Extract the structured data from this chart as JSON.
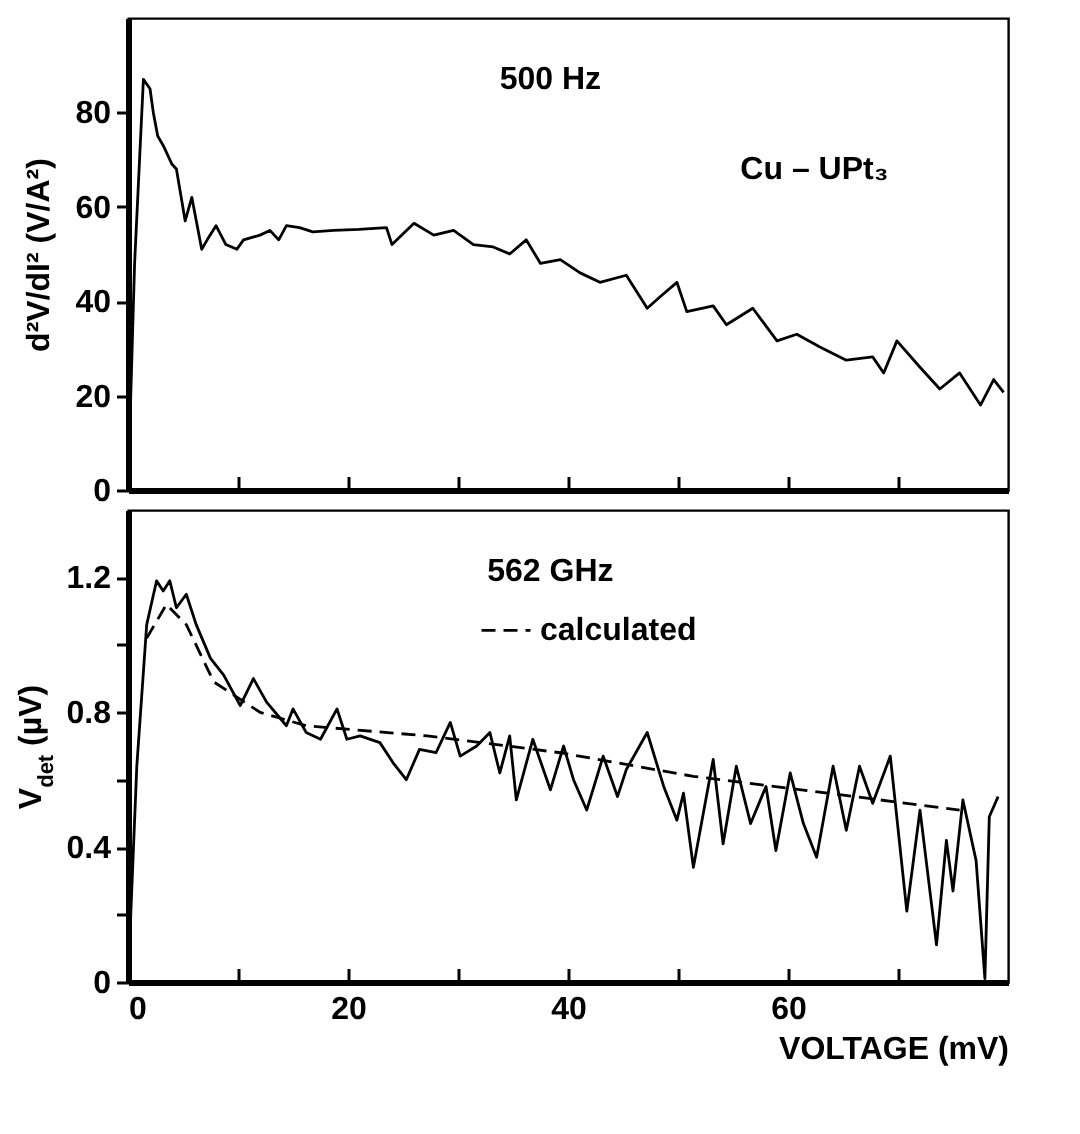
{
  "chart_data": [
    {
      "type": "line",
      "ylabel": "d²V/dI²  (V/A²)",
      "annotations": [
        "500 Hz",
        "Cu – UPt₃"
      ],
      "xlim": [
        0,
        80
      ],
      "xticks": [
        {
          "value": 0,
          "label": null
        },
        {
          "value": 10,
          "label": null
        },
        {
          "value": 20,
          "label": null
        },
        {
          "value": 30,
          "label": null
        },
        {
          "value": 40,
          "label": null
        },
        {
          "value": 50,
          "label": null
        },
        {
          "value": 60,
          "label": null
        },
        {
          "value": 70,
          "label": null
        }
      ],
      "ylim": [
        0,
        100
      ],
      "yticks": [
        0,
        20,
        40,
        60,
        80
      ],
      "tick_labels": "y",
      "grid": false,
      "series": [
        {
          "color": "#000000",
          "x": [
            0,
            0.6,
            1.4,
            2.0,
            2.3,
            2.7,
            3.2,
            4.0,
            4.4,
            5.2,
            5.8,
            6.7,
            7.2,
            8.0,
            8.9,
            9.9,
            10.5,
            12,
            12.9,
            13.7,
            14.4,
            15.6,
            16.8,
            18.7,
            21,
            23.5,
            24,
            26,
            27.8,
            29.6,
            31.4,
            33.2,
            34.7,
            36.2,
            37.5,
            39.3,
            41.1,
            42.9,
            45.3,
            47.2,
            48.4,
            49.9,
            50.8,
            53.2,
            54.4,
            56.8,
            59,
            60.8,
            62.9,
            65.3,
            67.7,
            68.7,
            69.9,
            72,
            73.8,
            75.6,
            77.5,
            78.7,
            79.6
          ],
          "values": [
            0,
            48,
            87,
            85,
            80,
            75,
            73,
            69,
            68,
            57,
            62,
            51,
            53,
            56,
            52,
            51,
            53,
            54,
            55,
            53,
            56,
            55.6,
            54.7,
            55,
            55.2,
            55.6,
            52,
            56.5,
            54,
            55,
            52,
            51.5,
            50,
            53,
            48,
            48.8,
            46,
            44,
            45.5,
            38.5,
            41,
            44,
            37.8,
            39,
            35,
            38.5,
            31.6,
            33,
            30.3,
            27.5,
            28.2,
            24.8,
            31.6,
            26,
            21.4,
            24.8,
            18,
            23.4,
            20.7
          ]
        }
      ]
    },
    {
      "type": "line",
      "xlabel": "VOLTAGE  (mV)",
      "ylabel": "V$_{det}$  (µV)",
      "annotations": [
        "562 GHz"
      ],
      "xlim": [
        0,
        80
      ],
      "xticks": [
        0,
        {
          "value": 10,
          "label": null
        },
        20,
        {
          "value": 30,
          "label": null
        },
        40,
        {
          "value": 50,
          "label": null
        },
        60,
        {
          "value": 70,
          "label": null
        }
      ],
      "ylim": [
        0,
        1.4
      ],
      "yticks": [
        0,
        {
          "value": 0.2,
          "label": null
        },
        0.4,
        {
          "value": 0.6,
          "label": null
        },
        0.8,
        {
          "value": 1.0,
          "label": null
        },
        1.2
      ],
      "grid": false,
      "legend": "top",
      "series": [
        {
          "color": "#000000",
          "line_style": "solid",
          "x": [
            0,
            0.8,
            1.7,
            2.6,
            3.2,
            3.8,
            4.4,
            5.3,
            6.2,
            7.5,
            8.7,
            10.2,
            11.4,
            12.6,
            14.4,
            15,
            16.2,
            17.5,
            19,
            19.9,
            21.1,
            22.9,
            24.1,
            25.3,
            26.5,
            28,
            29.3,
            30.2,
            31.7,
            32.9,
            33.8,
            34.7,
            35.3,
            36.8,
            38.4,
            39.6,
            40.5,
            41.7,
            43.2,
            44.5,
            45.3,
            47.2,
            48.7,
            49.9,
            50.5,
            51.4,
            53.2,
            54.1,
            55.3,
            56.6,
            58,
            58.9,
            60.2,
            61.4,
            62.6,
            64.1,
            65.3,
            66.5,
            67.7,
            69.3,
            70.8,
            72,
            73.5,
            74.4,
            75,
            75.9,
            77.1,
            77.9,
            78.3,
            79.1
          ],
          "values": [
            0,
            0.64,
            1.06,
            1.19,
            1.16,
            1.19,
            1.11,
            1.15,
            1.06,
            0.96,
            0.91,
            0.82,
            0.9,
            0.83,
            0.76,
            0.81,
            0.74,
            0.72,
            0.81,
            0.72,
            0.73,
            0.71,
            0.65,
            0.6,
            0.69,
            0.68,
            0.77,
            0.67,
            0.7,
            0.74,
            0.62,
            0.73,
            0.54,
            0.72,
            0.57,
            0.7,
            0.6,
            0.51,
            0.67,
            0.55,
            0.63,
            0.74,
            0.58,
            0.48,
            0.56,
            0.34,
            0.66,
            0.41,
            0.64,
            0.47,
            0.58,
            0.39,
            0.62,
            0.47,
            0.37,
            0.64,
            0.45,
            0.64,
            0.53,
            0.67,
            0.21,
            0.51,
            0.11,
            0.42,
            0.27,
            0.54,
            0.36,
            0.01,
            0.49,
            0.55
          ]
        },
        {
          "name": "calculated",
          "color": "#000000",
          "line_style": "dashed",
          "x": [
            1.7,
            3.5,
            5.3,
            7.8,
            12,
            16.2,
            27.2,
            39.3,
            51.4,
            63.6,
            75.6
          ],
          "values": [
            1.02,
            1.12,
            1.06,
            0.89,
            0.8,
            0.76,
            0.73,
            0.68,
            0.61,
            0.56,
            0.51
          ]
        }
      ]
    }
  ]
}
